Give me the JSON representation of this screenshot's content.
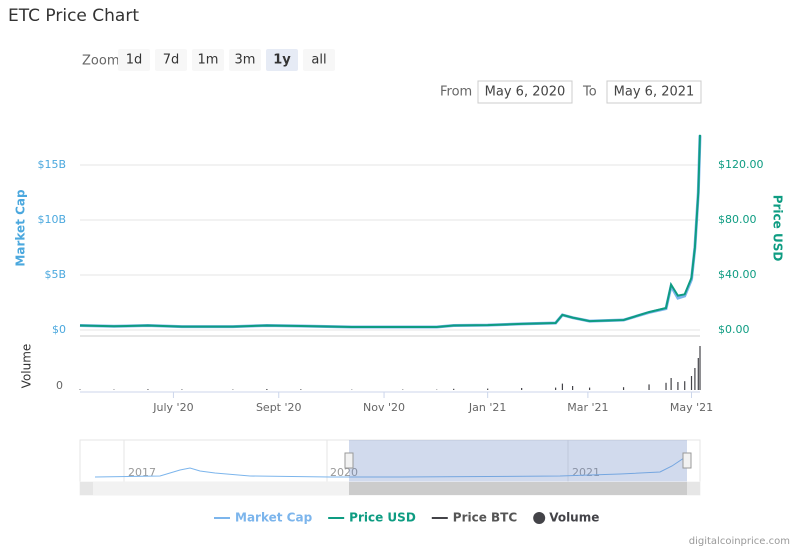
{
  "chart_data": {
    "type": "line",
    "title": "ETC Price Chart",
    "zoom": {
      "label": "Zoom",
      "buttons": [
        "1d",
        "7d",
        "1m",
        "3m",
        "1y",
        "all"
      ],
      "selected": 4
    },
    "range": {
      "from_label": "From",
      "from": "May 6, 2020",
      "to_label": "To",
      "to": "May 6, 2021"
    },
    "y_label": "Market Cap",
    "y2_label": "Price USD",
    "xlim": [
      0,
      365
    ],
    "xticks": [
      {
        "value": 55,
        "label": "July '20"
      },
      {
        "value": 117,
        "label": "Sept '20"
      },
      {
        "value": 179,
        "label": "Nov '20"
      },
      {
        "value": 240,
        "label": "Jan '21"
      },
      {
        "value": 299,
        "label": "Mar '21"
      },
      {
        "value": 360,
        "label": "May '21"
      }
    ],
    "ylim": [
      0,
      19500000000
    ],
    "yticks": [
      {
        "value": 0,
        "label": "$0"
      },
      {
        "value": 5000000000,
        "label": "$5B"
      },
      {
        "value": 10000000000,
        "label": "$10B"
      },
      {
        "value": 15000000000,
        "label": "$15B"
      }
    ],
    "y2lim": [
      0,
      156
    ],
    "y2ticks": [
      {
        "value": 0,
        "label": "$0.00"
      },
      {
        "value": 40,
        "label": "$40.00"
      },
      {
        "value": 80,
        "label": "$80.00"
      },
      {
        "value": 120,
        "label": "$120.00"
      }
    ],
    "grid": true,
    "x": [
      0,
      20,
      40,
      60,
      90,
      110,
      130,
      160,
      190,
      210,
      220,
      240,
      260,
      280,
      284,
      290,
      300,
      320,
      335,
      345,
      348,
      352,
      356,
      360,
      362,
      364,
      365
    ],
    "series": [
      {
        "name": "Market Cap",
        "color": "#7cb5ec",
        "values": [
          410000000.0,
          340000000.0,
          410000000.0,
          310000000.0,
          310000000.0,
          410000000.0,
          360000000.0,
          270000000.0,
          270000000.0,
          270000000.0,
          410000000.0,
          450000000.0,
          550000000.0,
          640000000.0,
          1370000000.0,
          1120000000.0,
          810000000.0,
          910000000.0,
          1600000000.0,
          1950000000.0,
          4000000000.0,
          2900000000.0,
          3100000000.0,
          4600000000.0,
          7500000000.0,
          12500000000.0,
          17700000000.0
        ]
      },
      {
        "name": "Price USD",
        "color": "#0e9c82",
        "axis": "y2",
        "values": [
          3.3,
          2.7,
          3.3,
          2.5,
          2.5,
          3.3,
          2.9,
          2.2,
          2.2,
          2.2,
          3.3,
          3.6,
          4.4,
          5.1,
          11,
          9,
          6.5,
          7.3,
          13,
          16,
          33,
          25,
          26,
          38,
          60,
          100,
          142
        ]
      }
    ],
    "hidden_series": [
      {
        "name": "Price BTC",
        "color": "#434348"
      }
    ],
    "volume": {
      "name": "Volume",
      "label": "Volume",
      "color": "#434348",
      "ylim": [
        0,
        12000000000
      ],
      "yticks": [
        0
      ],
      "values": [
        150000000.0,
        120000000.0,
        200000000.0,
        150000000.0,
        120000000.0,
        250000000.0,
        180000000.0,
        100000000.0,
        120000000.0,
        100000000.0,
        300000000.0,
        350000000.0,
        500000000.0,
        600000000.0,
        1600000000.0,
        1000000000.0,
        600000000.0,
        700000000.0,
        1400000000.0,
        1800000000.0,
        3000000000.0,
        2000000000.0,
        2200000000.0,
        3500000000.0,
        5500000000.0,
        8000000000.0,
        11000000000.0
      ]
    },
    "navigator": {
      "labels": [
        "2017",
        "2020",
        "2021"
      ]
    },
    "credit": "digitalcoinprice.com"
  }
}
